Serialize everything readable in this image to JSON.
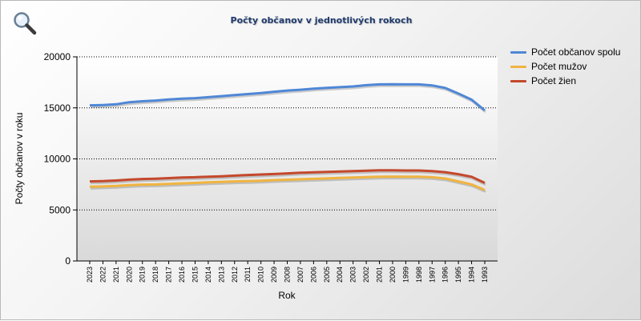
{
  "window": {
    "title": "Počty občanov v jednotlivých rokoch"
  },
  "toolbar": {
    "zoom_icon": "magnifier-icon"
  },
  "chart_data": {
    "type": "line",
    "title": "Počty občanov v jednotlivých rokoch",
    "xlabel": "Rok",
    "ylabel": "Počty občanov v roku",
    "ylim": [
      0,
      20000
    ],
    "yticks": [
      "0",
      "5000",
      "10000",
      "15000",
      "20000"
    ],
    "grid": true,
    "legend_position": "right",
    "categories": [
      "2023",
      "2022",
      "2021",
      "2020",
      "2019",
      "2018",
      "2017",
      "2016",
      "2015",
      "2014",
      "2013",
      "2012",
      "2011",
      "2010",
      "2009",
      "2008",
      "2007",
      "2006",
      "2005",
      "2004",
      "2003",
      "2002",
      "2001",
      "2000",
      "1999",
      "1998",
      "1997",
      "1996",
      "1995",
      "1994",
      "1993"
    ],
    "series": [
      {
        "name": "Počet občanov spolu",
        "color": "#4f87d6",
        "values": [
          15250,
          15270,
          15350,
          15550,
          15650,
          15720,
          15820,
          15900,
          15950,
          16050,
          16150,
          16250,
          16350,
          16450,
          16580,
          16700,
          16780,
          16880,
          16960,
          17030,
          17100,
          17220,
          17300,
          17320,
          17300,
          17300,
          17200,
          16950,
          16400,
          15800,
          14750
        ]
      },
      {
        "name": "Počet mužov",
        "color": "#f0b440",
        "values": [
          7280,
          7300,
          7350,
          7430,
          7480,
          7500,
          7550,
          7600,
          7650,
          7700,
          7740,
          7800,
          7830,
          7860,
          7920,
          7960,
          8000,
          8050,
          8090,
          8130,
          8170,
          8220,
          8260,
          8270,
          8260,
          8260,
          8200,
          8080,
          7800,
          7500,
          6950
        ]
      },
      {
        "name": "Počet žien",
        "color": "#c4482c",
        "values": [
          7800,
          7820,
          7880,
          7970,
          8030,
          8060,
          8120,
          8180,
          8200,
          8260,
          8300,
          8360,
          8420,
          8470,
          8520,
          8580,
          8640,
          8680,
          8720,
          8760,
          8800,
          8850,
          8880,
          8880,
          8860,
          8860,
          8800,
          8700,
          8500,
          8250,
          7650
        ]
      }
    ]
  }
}
